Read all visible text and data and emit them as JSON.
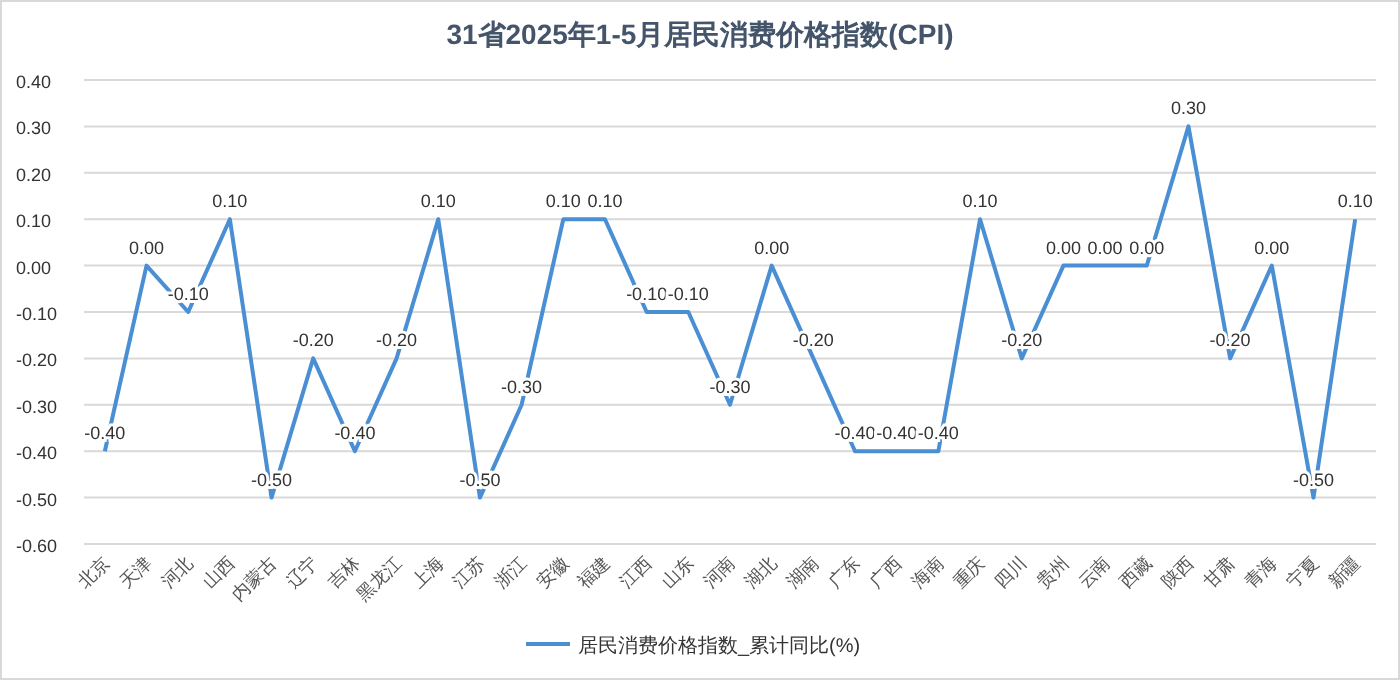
{
  "chart_data": {
    "type": "line",
    "title": "31省2025年1-5月居民消费价格指数(CPI)",
    "categories": [
      "北京",
      "天津",
      "河北",
      "山西",
      "内蒙古",
      "辽宁",
      "吉林",
      "黑龙江",
      "上海",
      "江苏",
      "浙江",
      "安徽",
      "福建",
      "江西",
      "山东",
      "河南",
      "湖北",
      "湖南",
      "广东",
      "广西",
      "海南",
      "重庆",
      "四川",
      "贵州",
      "云南",
      "西藏",
      "陕西",
      "甘肃",
      "青海",
      "宁夏",
      "新疆"
    ],
    "series": [
      {
        "name": "居民消费价格指数_累计同比(%)",
        "color": "#4a8fd4",
        "values": [
          -0.4,
          0,
          -0.1,
          0.1,
          -0.5,
          -0.2,
          -0.4,
          -0.2,
          0.1,
          -0.5,
          -0.3,
          0.1,
          0.1,
          -0.1,
          -0.1,
          -0.3,
          0,
          -0.2,
          -0.4,
          -0.4,
          -0.4,
          0.1,
          -0.2,
          0,
          0,
          0,
          0.3,
          -0.2,
          0,
          -0.5,
          0.1
        ],
        "value_labels": [
          "-0.40",
          "0.00",
          "-0.10",
          "0.10",
          "-0.50",
          "-0.20",
          "-0.40",
          "-0.20",
          "0.10",
          "-0.50",
          "-0.30",
          "0.10",
          "0.10",
          "-0.10",
          "-0.10",
          "-0.30",
          "0.00",
          "-0.20",
          "-0.40",
          "-0.40",
          "-0.40",
          "0.10",
          "-0.20",
          "0.00",
          "0.00",
          "0.00",
          "0.30",
          "-0.20",
          "0.00",
          "-0.50",
          "0.10"
        ]
      }
    ],
    "ylim": [
      -0.6,
      0.4
    ],
    "yticks": [
      {
        "value": 0.4,
        "label": "0.40"
      },
      {
        "value": 0.3,
        "label": "0.30"
      },
      {
        "value": 0.2,
        "label": "0.20"
      },
      {
        "value": 0.1,
        "label": "0.10"
      },
      {
        "value": 0,
        "label": "0.00"
      },
      {
        "value": -0.1,
        "label": "-0.10"
      },
      {
        "value": -0.2,
        "label": "-0.20"
      },
      {
        "value": -0.3,
        "label": "-0.30"
      },
      {
        "value": -0.4,
        "label": "-0.40"
      },
      {
        "value": -0.5,
        "label": "-0.50"
      },
      {
        "value": -0.6,
        "label": "-0.60"
      }
    ],
    "grid": "y",
    "legend": "bottom",
    "marker": "none",
    "line_style": "solid"
  }
}
